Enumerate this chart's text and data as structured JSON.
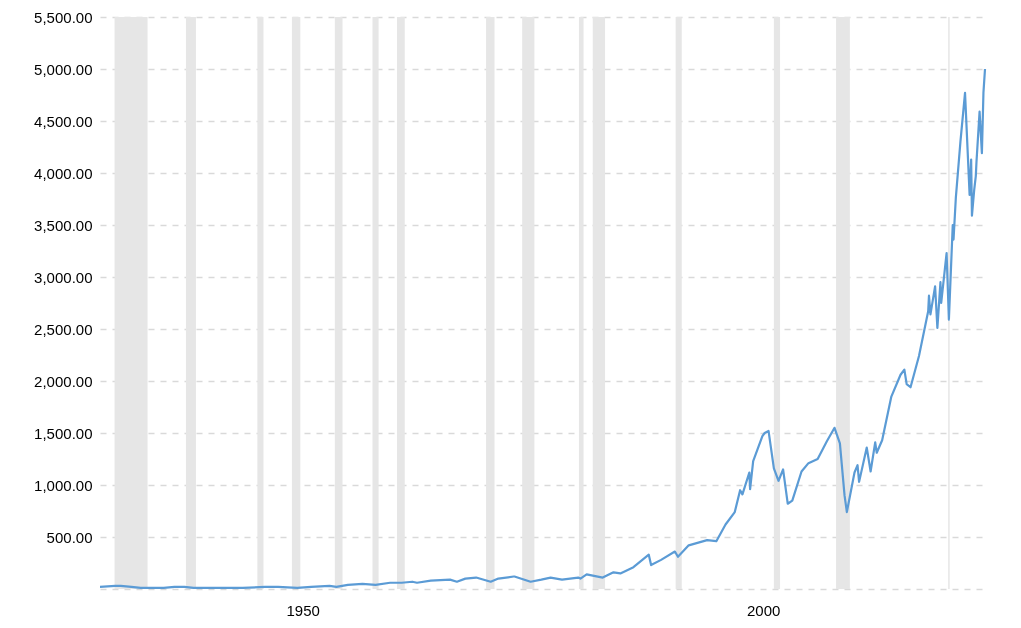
{
  "chart_data": {
    "type": "line",
    "x": [
      "1928-01",
      "1929-09",
      "1930-04",
      "1931-06",
      "1932-06",
      "1933-07",
      "1934-12",
      "1936-02",
      "1937-03",
      "1938-03",
      "1939-10",
      "1940-06",
      "1942-04",
      "1943-07",
      "1945-12",
      "1946-05",
      "1947-05",
      "1949-06",
      "1950-12",
      "1952-12",
      "1953-09",
      "1954-12",
      "1956-07",
      "1957-12",
      "1959-07",
      "1960-10",
      "1961-12",
      "1962-06",
      "1963-12",
      "1966-01",
      "1966-10",
      "1967-09",
      "1968-11",
      "1970-06",
      "1971-04",
      "1972-12",
      "1973-01",
      "1974-10",
      "1975-12",
      "1976-12",
      "1978-03",
      "1979-12",
      "1980-03",
      "1980-11",
      "1982-08",
      "1983-10",
      "1984-07",
      "1985-12",
      "1987-08",
      "1987-11",
      "1988-12",
      "1990-06",
      "1990-10",
      "1991-12",
      "1993-12",
      "1994-12",
      "1995-12",
      "1996-12",
      "1997-07",
      "1997-10",
      "1998-07",
      "1998-08",
      "1998-12",
      "1999-12",
      "2000-03",
      "2000-08",
      "2001-03",
      "2001-09",
      "2002-03",
      "2002-09",
      "2003-03",
      "2004-03",
      "2004-12",
      "2005-12",
      "2006-12",
      "2007-10",
      "2008-05",
      "2008-11",
      "2009-02",
      "2009-12",
      "2010-04",
      "2010-06",
      "2011-04",
      "2011-09",
      "2012-03",
      "2012-05",
      "2012-12",
      "2013-12",
      "2014-12",
      "2015-05",
      "2015-08",
      "2016-01",
      "2016-12",
      "2017-12",
      "2018-01",
      "2018-03",
      "2018-09",
      "2018-12",
      "2019-04",
      "2019-05",
      "2019-12",
      "2020-03",
      "2020-08",
      "2020-09",
      "2020-12",
      "2021-06",
      "2021-12",
      "2022-06",
      "2022-08",
      "2022-09",
      "2022-12",
      "2023-02",
      "2023-03",
      "2023-07",
      "2023-10",
      "2023-12",
      "2024-02"
    ],
    "series": [
      {
        "color": "#5b9bd5",
        "values": [
          20,
          30,
          30,
          20,
          10,
          10,
          10,
          20,
          20,
          10,
          10,
          10,
          10,
          10,
          20,
          20,
          20,
          10,
          20,
          30,
          20,
          40,
          50,
          40,
          60,
          60,
          70,
          60,
          80,
          90,
          70,
          100,
          110,
          70,
          100,
          120,
          120,
          70,
          90,
          110,
          90,
          110,
          100,
          140,
          110,
          160,
          150,
          210,
          330,
          230,
          280,
          360,
          310,
          420,
          470,
          460,
          620,
          740,
          950,
          910,
          1120,
          960,
          1230,
          1470,
          1500,
          1520,
          1160,
          1040,
          1150,
          820,
          850,
          1130,
          1210,
          1250,
          1420,
          1550,
          1400,
          900,
          740,
          1120,
          1190,
          1030,
          1360,
          1130,
          1410,
          1310,
          1430,
          1850,
          2060,
          2110,
          1970,
          1940,
          2240,
          2670,
          2820,
          2640,
          2910,
          2510,
          2950,
          2750,
          3230,
          2590,
          3500,
          3360,
          3760,
          4300,
          4770,
          3790,
          4130,
          3590,
          3840,
          3970,
          4110,
          4590,
          4190,
          4770,
          5000
        ]
      }
    ],
    "xlim": [
      "1928-01",
      "2024-02"
    ],
    "xticks": [
      {
        "value": "1950-01-01",
        "label": "1950"
      },
      {
        "value": "2000-01-01",
        "label": "2000"
      }
    ],
    "ylim": [
      0,
      5500
    ],
    "yticks": [
      {
        "value": 0,
        "label": null
      },
      {
        "value": 500,
        "label": "500.00"
      },
      {
        "value": 1000,
        "label": "1,000.00"
      },
      {
        "value": 1500,
        "label": "1,500.00"
      },
      {
        "value": 2000,
        "label": "2,000.00"
      },
      {
        "value": 2500,
        "label": "2,500.00"
      },
      {
        "value": 3000,
        "label": "3,000.00"
      },
      {
        "value": 3500,
        "label": "3,500.00"
      },
      {
        "value": 4000,
        "label": "4,000.00"
      },
      {
        "value": 4500,
        "label": "4,500.00"
      },
      {
        "value": 5000,
        "label": "5,000.00"
      },
      {
        "value": 5500,
        "label": "5,500.00"
      }
    ],
    "bands": [
      {
        "axis": "x",
        "from": "1929-08",
        "to": "1933-03",
        "color": "#e6e6e6"
      },
      {
        "axis": "x",
        "from": "1937-05",
        "to": "1938-06",
        "color": "#e6e6e6"
      },
      {
        "axis": "x",
        "from": "1945-02",
        "to": "1945-10",
        "color": "#e6e6e6"
      },
      {
        "axis": "x",
        "from": "1948-11",
        "to": "1949-10",
        "color": "#e6e6e6"
      },
      {
        "axis": "x",
        "from": "1953-07",
        "to": "1954-05",
        "color": "#e6e6e6"
      },
      {
        "axis": "x",
        "from": "1957-08",
        "to": "1958-04",
        "color": "#e6e6e6"
      },
      {
        "axis": "x",
        "from": "1960-04",
        "to": "1961-02",
        "color": "#e6e6e6"
      },
      {
        "axis": "x",
        "from": "1969-12",
        "to": "1970-11",
        "color": "#e6e6e6"
      },
      {
        "axis": "x",
        "from": "1973-11",
        "to": "1975-03",
        "color": "#e6e6e6"
      },
      {
        "axis": "x",
        "from": "1980-01",
        "to": "1980-07",
        "color": "#e6e6e6"
      },
      {
        "axis": "x",
        "from": "1981-07",
        "to": "1982-11",
        "color": "#e6e6e6"
      },
      {
        "axis": "x",
        "from": "1990-07",
        "to": "1991-03",
        "color": "#e6e6e6"
      },
      {
        "axis": "x",
        "from": "2001-03",
        "to": "2001-11",
        "color": "#e6e6e6"
      },
      {
        "axis": "x",
        "from": "2007-12",
        "to": "2009-06",
        "color": "#e6e6e6"
      },
      {
        "axis": "x",
        "from": "2020-02",
        "to": "2020-04",
        "color": "#e6e6e6"
      }
    ],
    "grid": "y",
    "marker": "none",
    "line_style": "solid"
  }
}
